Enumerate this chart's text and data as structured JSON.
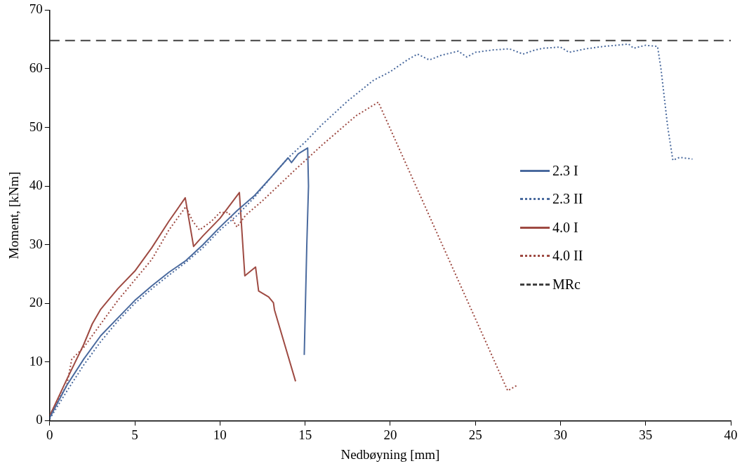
{
  "chart_data": {
    "type": "line",
    "xlabel": "Nedbøyning [mm]",
    "ylabel": "Moment, [kNm]",
    "xlim": [
      0,
      40
    ],
    "xticks": [
      0,
      5,
      10,
      15,
      20,
      25,
      30,
      35,
      40
    ],
    "ylim": [
      0,
      70
    ],
    "yticks": [
      0,
      10,
      20,
      30,
      40,
      50,
      60,
      70
    ],
    "grid": false,
    "legend": "right",
    "marker": "none",
    "series": [
      {
        "name": "2.3 I",
        "color": "#4a6a9e",
        "line_style": "solid",
        "x": [
          0,
          1,
          2,
          3,
          4,
          5,
          6,
          7,
          8,
          9,
          10,
          11,
          12,
          13,
          14,
          14.2,
          14.6,
          15.15,
          15.2,
          15.1,
          14.95
        ],
        "values": [
          0.5,
          6,
          10.5,
          14.5,
          17.5,
          20.5,
          23,
          25.3,
          27.3,
          30,
          33,
          35.8,
          38.3,
          41.5,
          44.8,
          44,
          45.5,
          46.5,
          40,
          30,
          11.2
        ]
      },
      {
        "name": "2.3 II",
        "color": "#4a6a9e",
        "line_style": "dotted",
        "x": [
          0,
          1,
          2,
          3,
          4,
          5,
          6,
          7,
          8,
          9,
          10,
          11,
          12,
          13,
          14,
          15,
          16,
          17.5,
          19,
          20,
          21,
          21.6,
          22.3,
          23,
          24,
          24.5,
          25,
          26,
          27,
          27.8,
          28.5,
          29,
          30,
          30.5,
          31.5,
          32.5,
          34,
          34.3,
          35,
          35.7,
          35.9,
          36.3,
          36.6,
          37,
          37.75
        ],
        "values": [
          0.3,
          5,
          9.5,
          13.5,
          17,
          20,
          22.5,
          24.8,
          27,
          29.5,
          32.5,
          35,
          38,
          41.5,
          44.8,
          47.5,
          50.5,
          54.5,
          58,
          59.5,
          61.5,
          62.5,
          61.5,
          62.3,
          63,
          62,
          62.8,
          63.2,
          63.4,
          62.5,
          63.2,
          63.5,
          63.7,
          62.8,
          63.4,
          63.8,
          64.2,
          63.5,
          64,
          63.8,
          60,
          50,
          44.4,
          44.9,
          44.6
        ]
      },
      {
        "name": "4.0 I",
        "color": "#9e4a42",
        "line_style": "solid",
        "x": [
          0,
          1,
          2,
          2.5,
          3,
          4,
          5,
          6,
          7,
          7.96,
          8.45,
          9,
          10,
          11.14,
          11.46,
          12.09,
          12.27,
          12.86,
          13.14,
          13.2,
          14.44
        ],
        "values": [
          0.8,
          7,
          13,
          16.5,
          19,
          22.5,
          25.5,
          29.5,
          34,
          38,
          29.7,
          31.5,
          34.5,
          38.9,
          24.7,
          26.2,
          22.1,
          21.1,
          20.1,
          18.9,
          6.7
        ]
      },
      {
        "name": "4.0 II",
        "color": "#9e4a42",
        "line_style": "dotted",
        "x": [
          0,
          1,
          1.3,
          2,
          3,
          4,
          5,
          6,
          7,
          8,
          8.4,
          8.8,
          9.5,
          10,
          10.5,
          11,
          11.5,
          12.5,
          14.5,
          16,
          18,
          19.3,
          26.9,
          27.5
        ],
        "values": [
          1,
          6,
          10.5,
          12.5,
          16.5,
          20.5,
          24,
          27.5,
          32.5,
          36.5,
          34,
          32.5,
          34,
          35.5,
          35.5,
          33,
          35,
          37.5,
          43,
          47,
          52,
          54.3,
          5.1,
          6.1
        ]
      }
    ],
    "ref_lines": [
      {
        "axis": "y",
        "value": 64.8,
        "label": "MRc",
        "color": "#404040",
        "line_style": "dashed"
      }
    ]
  }
}
